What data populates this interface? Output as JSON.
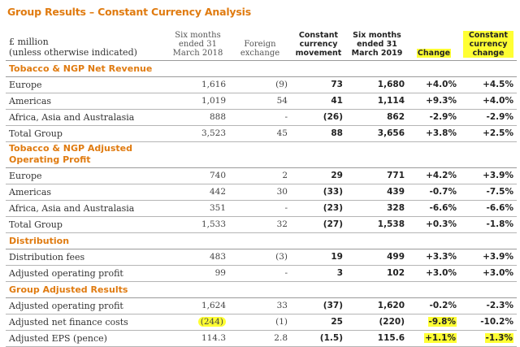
{
  "title": "Group Results – Constant Currency Analysis",
  "header": {
    "label": [
      "£ million",
      "(unless otherwise indicated)"
    ],
    "cols": [
      [
        "Six months",
        "ended 31",
        "March 2018"
      ],
      [
        "Foreign",
        "exchange"
      ],
      [
        "Constant",
        "currency",
        "movement"
      ],
      [
        "Six months",
        "ended 31",
        "March 2019"
      ],
      [
        "Change"
      ],
      [
        "Constant",
        "currency",
        "change"
      ]
    ]
  },
  "sections": [
    {
      "title": [
        "Tobacco & NGP Net Revenue"
      ],
      "rows": [
        {
          "label": "Europe",
          "v": [
            "1,616",
            "(9)",
            "73",
            "1,680",
            "+4.0%",
            "+4.5%"
          ]
        },
        {
          "label": "Americas",
          "v": [
            "1,019",
            "54",
            "41",
            "1,114",
            "+9.3%",
            "+4.0%"
          ]
        },
        {
          "label": "Africa, Asia and Australasia",
          "v": [
            "888",
            "-",
            "(26)",
            "862",
            "-2.9%",
            "-2.9%"
          ]
        },
        {
          "label": "Total Group",
          "v": [
            "3,523",
            "45",
            "88",
            "3,656",
            "+3.8%",
            "+2.5%"
          ]
        }
      ]
    },
    {
      "title": [
        "Tobacco & NGP Adjusted",
        "Operating Profit"
      ],
      "rows": [
        {
          "label": "Europe",
          "v": [
            "740",
            "2",
            "29",
            "771",
            "+4.2%",
            "+3.9%"
          ]
        },
        {
          "label": "Americas",
          "v": [
            "442",
            "30",
            "(33)",
            "439",
            "-0.7%",
            "-7.5%"
          ]
        },
        {
          "label": "Africa, Asia and Australasia",
          "v": [
            "351",
            "-",
            "(23)",
            "328",
            "-6.6%",
            "-6.6%"
          ]
        },
        {
          "label": "Total Group",
          "v": [
            "1,533",
            "32",
            "(27)",
            "1,538",
            "+0.3%",
            "-1.8%"
          ]
        }
      ]
    },
    {
      "title": [
        "Distribution"
      ],
      "rows": [
        {
          "label": "Distribution fees",
          "v": [
            "483",
            "(3)",
            "19",
            "499",
            "+3.3%",
            "+3.9%"
          ]
        },
        {
          "label": "Adjusted operating profit",
          "v": [
            "99",
            "-",
            "3",
            "102",
            "+3.0%",
            "+3.0%"
          ]
        }
      ]
    },
    {
      "title": [
        "Group Adjusted Results"
      ],
      "rows": [
        {
          "label": "Adjusted operating profit",
          "v": [
            "1,624",
            "33",
            "(37)",
            "1,620",
            "-0.2%",
            "-2.3%"
          ]
        },
        {
          "label": "Adjusted net finance costs",
          "v": [
            "(244)",
            "(1)",
            "25",
            "(220)",
            "-9.8%",
            "-10.2%"
          ]
        },
        {
          "label": "Adjusted EPS (pence)",
          "v": [
            "114.3",
            "2.8",
            "(1.5)",
            "115.6",
            "+1.1%",
            "-1.3%"
          ]
        }
      ]
    }
  ],
  "highlight_color": "#ffff33",
  "accent_color": "#e07b10"
}
